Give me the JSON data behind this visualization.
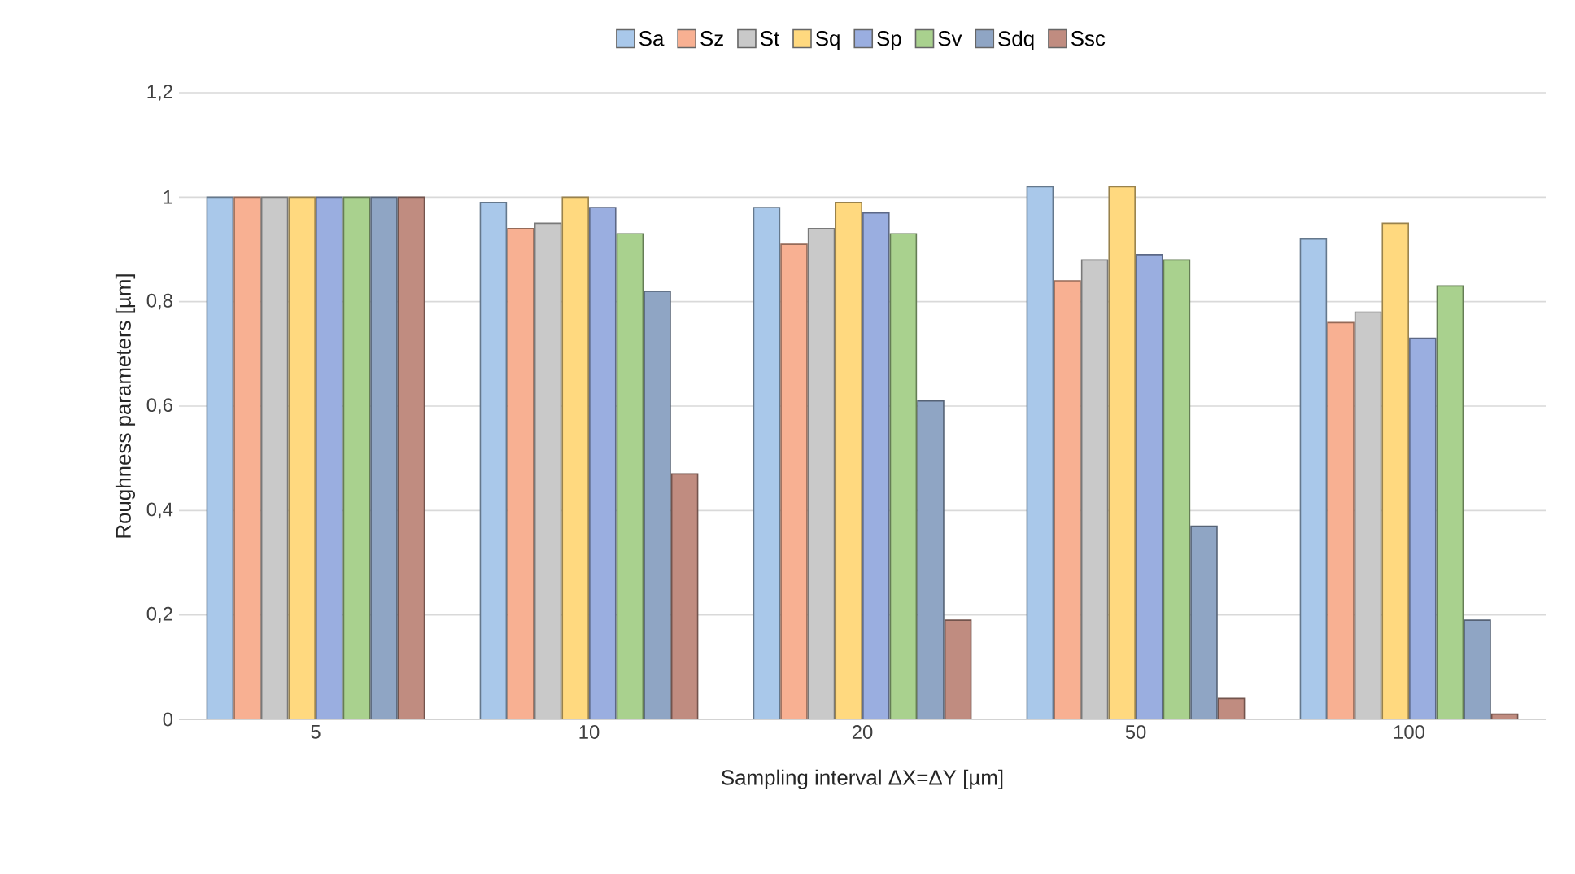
{
  "chart_data": {
    "type": "bar",
    "xlabel": "Sampling interval ΔX=ΔY [µm]",
    "ylabel": "Roughness parameters [µm]",
    "categories": [
      "5",
      "10",
      "20",
      "50",
      "100"
    ],
    "series": [
      {
        "name": "Sa",
        "color": "#a9c8ea",
        "values": [
          1.0,
          0.99,
          0.98,
          1.02,
          0.92
        ]
      },
      {
        "name": "Sz",
        "color": "#f8b092",
        "values": [
          1.0,
          0.94,
          0.91,
          0.84,
          0.76
        ]
      },
      {
        "name": "St",
        "color": "#c9c9c9",
        "values": [
          1.0,
          0.95,
          0.94,
          0.88,
          0.78
        ]
      },
      {
        "name": "Sq",
        "color": "#ffd97f",
        "values": [
          1.0,
          1.0,
          0.99,
          1.02,
          0.95
        ]
      },
      {
        "name": "Sp",
        "color": "#9aaee0",
        "values": [
          1.0,
          0.98,
          0.97,
          0.89,
          0.73
        ]
      },
      {
        "name": "Sv",
        "color": "#a9d18e",
        "values": [
          1.0,
          0.93,
          0.93,
          0.88,
          0.83
        ]
      },
      {
        "name": "Sdq",
        "color": "#8fa5c4",
        "values": [
          1.0,
          0.82,
          0.61,
          0.37,
          0.19
        ]
      },
      {
        "name": "Ssc",
        "color": "#c08c80",
        "values": [
          1.0,
          0.47,
          0.19,
          0.04,
          0.01
        ]
      }
    ],
    "ylim": [
      0,
      1.2
    ],
    "yticks": [
      0,
      {
        "value": 0.2,
        "label": "0,2"
      },
      {
        "value": 0.4,
        "label": "0,4"
      },
      {
        "value": 0.6,
        "label": "0,6"
      },
      {
        "value": 0.8,
        "label": "0,8"
      },
      1,
      {
        "value": 1.2,
        "label": "1,2"
      }
    ],
    "grid": "y",
    "legend": "top"
  }
}
